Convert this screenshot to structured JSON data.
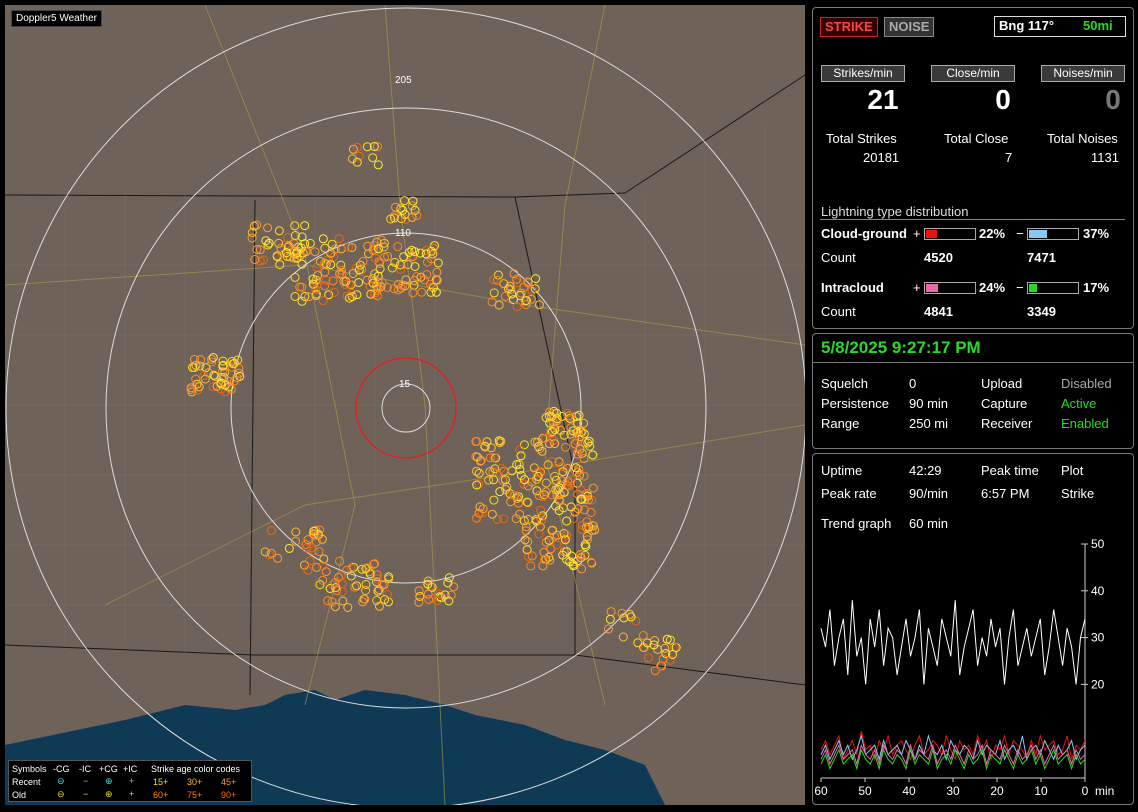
{
  "app": {
    "title": "Doppler5 Weather"
  },
  "map": {
    "ring_labels": [
      "205",
      "110",
      "15"
    ],
    "legend": {
      "header_symbols": "Symbols",
      "col_cg_minus": "-CG",
      "col_ic_minus": "-IC",
      "col_cg_plus": "+CG",
      "col_ic_plus": "+IC",
      "header_age": "Strike age color codes",
      "row_recent": "Recent",
      "row_old": "Old",
      "age_codes_recent": [
        "15+",
        "30+",
        "45+"
      ],
      "age_codes_old": [
        "60+",
        "75+",
        "90+"
      ]
    }
  },
  "status": {
    "strike_button": "STRIKE",
    "noise_button": "NOISE",
    "bearing": "Bng 117°",
    "range": "50mi"
  },
  "rates": {
    "strikes_label": "Strikes/min",
    "close_label": "Close/min",
    "noises_label": "Noises/min",
    "strikes_value": "21",
    "close_value": "0",
    "noises_value": "0",
    "total_strikes_label": "Total Strikes",
    "total_close_label": "Total Close",
    "total_noises_label": "Total Noises",
    "total_strikes": "20181",
    "total_close": "7",
    "total_noises": "1131"
  },
  "distribution": {
    "title": "Lightning type distribution",
    "cg_label": "Cloud-ground",
    "ic_label": "Intracloud",
    "count_label": "Count",
    "plus_sign": "+",
    "minus_sign": "−",
    "cg_plus_pct": "22%",
    "cg_minus_pct": "37%",
    "cg_plus_count": "4520",
    "cg_minus_count": "7471",
    "ic_plus_pct": "24%",
    "ic_minus_pct": "17%",
    "ic_plus_count": "4841",
    "ic_minus_count": "3349",
    "bar_levels": {
      "cg_plus": 0.22,
      "cg_minus": 0.37,
      "ic_plus": 0.24,
      "ic_minus": 0.17
    },
    "colors": {
      "cg_plus": "#ee1111",
      "cg_minus": "#88c8f0",
      "ic_plus": "#ee66aa",
      "ic_minus": "#22dd22"
    }
  },
  "settings": {
    "datetime": "5/8/2025 9:27:17 PM",
    "squelch_label": "Squelch",
    "squelch_value": "0",
    "persistence_label": "Persistence",
    "persistence_value": "90 min",
    "range_label": "Range",
    "range_value": "250 mi",
    "upload_label": "Upload",
    "upload_value": "Disabled",
    "capture_label": "Capture",
    "capture_value": "Active",
    "receiver_label": "Receiver",
    "receiver_value": "Enabled"
  },
  "stats": {
    "uptime_label": "Uptime",
    "uptime_value": "42:29",
    "peak_time_label": "Peak time",
    "peak_time_value": "6:57 PM",
    "plot_label": "Plot",
    "plot_value": "Strike",
    "peak_rate_label": "Peak rate",
    "peak_rate_value": "90/min",
    "trend_label": "Trend graph",
    "trend_value": "60 min"
  },
  "chart_data": {
    "type": "line",
    "xlabel": "min",
    "x_ticks": [
      "60",
      "50",
      "40",
      "30",
      "20",
      "10",
      "0"
    ],
    "y_ticks": [
      "50",
      "40",
      "30",
      "20"
    ],
    "xlim": [
      60,
      0
    ],
    "ylim": [
      0,
      50
    ],
    "series": [
      {
        "color": "#ffffff",
        "values": [
          32,
          28,
          36,
          24,
          30,
          34,
          22,
          38,
          26,
          30,
          20,
          34,
          28,
          36,
          24,
          32,
          30,
          22,
          28,
          34,
          26,
          30,
          36,
          20,
          32,
          28,
          24,
          34,
          30,
          26,
          38,
          22,
          28,
          32,
          36,
          24,
          30,
          26,
          34,
          28,
          32,
          20,
          30,
          36,
          24,
          28,
          32,
          26,
          30,
          34,
          22,
          28,
          36,
          30,
          24,
          32,
          28,
          20,
          30,
          34
        ]
      },
      {
        "color": "#ee1111",
        "values": [
          6,
          8,
          5,
          7,
          9,
          4,
          6,
          8,
          5,
          10,
          6,
          7,
          4,
          8,
          6,
          9,
          5,
          7,
          8,
          6,
          4,
          7,
          9,
          5,
          6,
          8,
          7,
          5,
          9,
          6,
          4,
          8,
          6,
          7,
          5,
          9,
          6,
          8,
          4,
          7,
          6,
          9,
          5,
          8,
          7,
          6,
          4,
          8,
          5,
          9,
          6,
          7,
          8,
          5,
          6,
          9,
          4,
          7,
          6,
          8
        ]
      },
      {
        "color": "#88c8f0",
        "values": [
          5,
          7,
          4,
          6,
          8,
          5,
          7,
          4,
          6,
          9,
          5,
          6,
          7,
          4,
          8,
          5,
          6,
          7,
          5,
          8,
          6,
          4,
          7,
          5,
          9,
          6,
          5,
          7,
          4,
          8,
          6,
          5,
          7,
          6,
          4,
          8,
          5,
          7,
          6,
          5,
          8,
          4,
          6,
          7,
          5,
          9,
          4,
          6,
          7,
          5,
          8,
          6,
          4,
          7,
          5,
          6,
          8,
          4,
          6,
          7
        ]
      },
      {
        "color": "#ee66aa",
        "values": [
          4,
          6,
          3,
          5,
          7,
          4,
          5,
          6,
          3,
          7,
          5,
          4,
          6,
          3,
          7,
          5,
          4,
          6,
          5,
          3,
          7,
          4,
          6,
          5,
          4,
          7,
          3,
          5,
          6,
          4,
          7,
          5,
          3,
          6,
          4,
          5,
          7,
          3,
          6,
          5,
          4,
          7,
          5,
          3,
          6,
          4,
          5,
          7,
          4,
          6,
          3,
          5,
          7,
          4,
          5,
          6,
          3,
          6,
          4,
          5
        ]
      },
      {
        "color": "#22dd22",
        "values": [
          3,
          5,
          2,
          4,
          6,
          3,
          4,
          5,
          2,
          6,
          4,
          3,
          5,
          2,
          6,
          4,
          3,
          5,
          4,
          2,
          6,
          3,
          5,
          4,
          3,
          6,
          2,
          4,
          5,
          3,
          6,
          4,
          2,
          5,
          3,
          4,
          6,
          2,
          5,
          4,
          3,
          6,
          4,
          2,
          5,
          3,
          4,
          6,
          3,
          5,
          2,
          4,
          6,
          3,
          4,
          5,
          2,
          5,
          3,
          4
        ]
      }
    ]
  }
}
